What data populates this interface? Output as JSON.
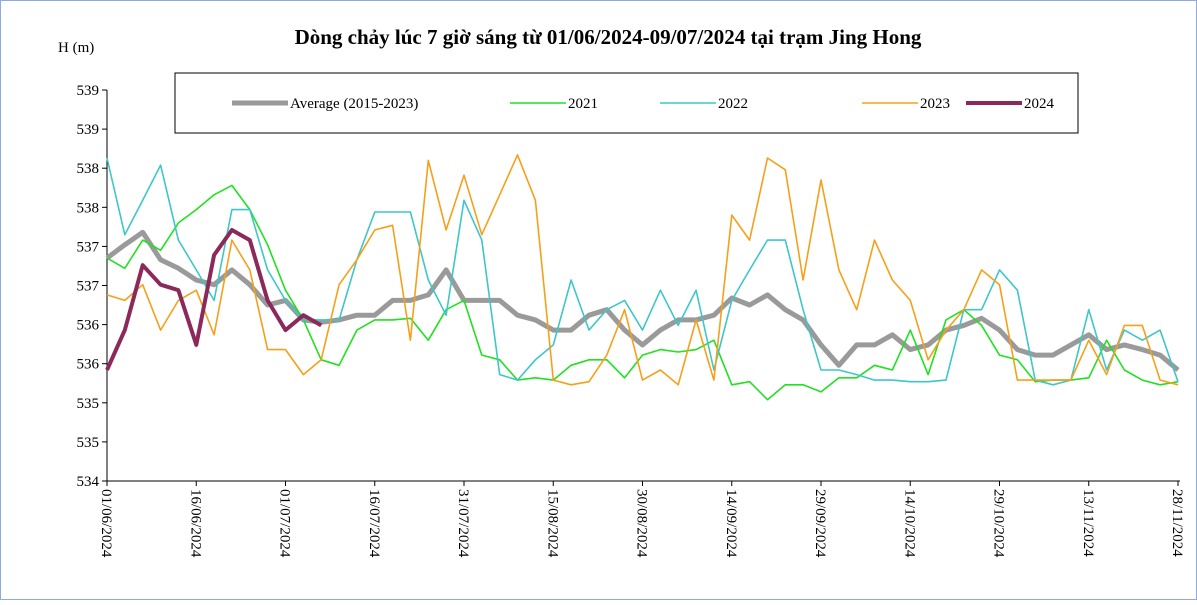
{
  "chart_data": {
    "type": "line",
    "title": "Dòng chảy lúc 7 giờ sáng từ 01/06/2024-09/07/2024 tại trạm Jing Hong",
    "y_label": "H (m)",
    "x": [
      "01/06/2024",
      "04/06/2024",
      "07/06/2024",
      "10/06/2024",
      "13/06/2024",
      "16/06/2024",
      "19/06/2024",
      "22/06/2024",
      "25/06/2024",
      "28/06/2024",
      "01/07/2024",
      "04/07/2024",
      "07/07/2024",
      "10/07/2024",
      "13/07/2024",
      "16/07/2024",
      "19/07/2024",
      "22/07/2024",
      "25/07/2024",
      "28/07/2024",
      "31/07/2024",
      "03/08/2024",
      "06/08/2024",
      "09/08/2024",
      "12/08/2024",
      "15/08/2024",
      "18/08/2024",
      "21/08/2024",
      "24/08/2024",
      "27/08/2024",
      "30/08/2024",
      "02/09/2024",
      "05/09/2024",
      "08/09/2024",
      "11/09/2024",
      "14/09/2024",
      "17/09/2024",
      "20/09/2024",
      "23/09/2024",
      "26/09/2024",
      "29/09/2024",
      "02/10/2024",
      "05/10/2024",
      "08/10/2024",
      "11/10/2024",
      "14/10/2024",
      "17/10/2024",
      "20/10/2024",
      "23/10/2024",
      "26/10/2024",
      "29/10/2024",
      "01/11/2024",
      "04/11/2024",
      "07/11/2024",
      "10/11/2024",
      "13/11/2024",
      "16/11/2024",
      "19/11/2024",
      "22/11/2024",
      "25/11/2024",
      "28/11/2024"
    ],
    "xlim": [
      "01/06/2024",
      "28/11/2024"
    ],
    "xticks": [
      "01/06/2024",
      "16/06/2024",
      "01/07/2024",
      "16/07/2024",
      "31/07/2024",
      "15/08/2024",
      "30/08/2024",
      "14/09/2024",
      "29/09/2024",
      "14/10/2024",
      "29/10/2024",
      "13/11/2024",
      "28/11/2024"
    ],
    "ylim": [
      534,
      539
    ],
    "yticks": [
      534,
      {
        "value": 534.5,
        "label": "535"
      },
      535,
      {
        "value": 535.5,
        "label": "536"
      },
      536,
      {
        "value": 536.5,
        "label": "537"
      },
      537,
      {
        "value": 537.5,
        "label": "538"
      },
      538,
      {
        "value": 538.5,
        "label": "539"
      },
      539
    ],
    "series": [
      {
        "name": "Average (2015-2023)",
        "color": "#9a9a9a",
        "values": [
          536.85,
          537.02,
          537.18,
          536.83,
          536.72,
          536.57,
          536.51,
          536.7,
          536.51,
          536.25,
          536.31,
          536.06,
          536.03,
          536.06,
          536.12,
          536.12,
          536.31,
          536.31,
          536.38,
          536.7,
          536.31,
          536.31,
          536.31,
          536.12,
          536.06,
          535.93,
          535.93,
          536.12,
          536.19,
          535.93,
          535.74,
          535.93,
          536.06,
          536.06,
          536.12,
          536.34,
          536.25,
          536.38,
          536.19,
          536.06,
          535.74,
          535.48,
          535.74,
          535.74,
          535.87,
          535.68,
          535.74,
          535.93,
          535.99,
          536.08,
          535.93,
          535.68,
          535.61,
          535.61,
          535.74,
          535.87,
          535.68,
          535.74,
          535.68,
          535.61,
          535.42
        ]
      },
      {
        "name": "2021",
        "color": "#22e022",
        "values": [
          536.85,
          536.72,
          537.08,
          536.95,
          537.3,
          537.47,
          537.66,
          537.78,
          537.47,
          537.02,
          536.44,
          536.06,
          535.55,
          535.48,
          535.93,
          536.06,
          536.06,
          536.08,
          535.8,
          536.19,
          536.31,
          535.61,
          535.55,
          535.29,
          535.32,
          535.29,
          535.48,
          535.55,
          535.55,
          535.32,
          535.61,
          535.68,
          535.65,
          535.68,
          535.8,
          535.23,
          535.27,
          535.04,
          535.23,
          535.23,
          535.14,
          535.32,
          535.32,
          535.48,
          535.42,
          535.93,
          535.36,
          536.06,
          536.19,
          535.99,
          535.61,
          535.55,
          535.27,
          535.29,
          535.29,
          535.32,
          535.8,
          535.42,
          535.29,
          535.23,
          535.27
        ]
      },
      {
        "name": "2022",
        "color": "#3fc6c8",
        "values": [
          538.13,
          537.15,
          537.59,
          538.04,
          537.08,
          536.7,
          536.31,
          537.47,
          537.47,
          536.7,
          536.31,
          536.06,
          536.06,
          536.06,
          536.83,
          537.44,
          537.44,
          537.44,
          536.57,
          536.12,
          537.59,
          537.08,
          535.36,
          535.29,
          535.55,
          535.74,
          536.57,
          535.93,
          536.19,
          536.31,
          535.93,
          536.44,
          535.99,
          536.44,
          535.42,
          536.31,
          536.7,
          537.08,
          537.08,
          536.19,
          535.42,
          535.42,
          535.36,
          535.29,
          535.29,
          535.27,
          535.27,
          535.29,
          536.19,
          536.19,
          536.7,
          536.44,
          535.29,
          535.23,
          535.29,
          536.19,
          535.42,
          535.93,
          535.8,
          535.93,
          535.27
        ]
      },
      {
        "name": "2023",
        "color": "#f5a01a",
        "values": [
          536.38,
          536.31,
          536.51,
          535.93,
          536.31,
          536.44,
          535.87,
          537.08,
          536.7,
          535.68,
          535.68,
          535.36,
          535.55,
          536.51,
          536.83,
          537.21,
          537.27,
          535.8,
          538.1,
          537.21,
          537.91,
          537.15,
          537.66,
          538.17,
          537.59,
          535.29,
          535.23,
          535.27,
          535.61,
          536.19,
          535.29,
          535.42,
          535.23,
          536.06,
          535.29,
          537.4,
          537.08,
          538.13,
          537.98,
          536.57,
          537.85,
          536.7,
          536.19,
          537.08,
          536.57,
          536.31,
          535.55,
          535.93,
          536.19,
          536.7,
          536.51,
          535.29,
          535.29,
          535.29,
          535.29,
          535.8,
          535.36,
          535.99,
          535.99,
          535.29,
          535.23
        ]
      },
      {
        "name": "2024",
        "color": "#8b2a5a",
        "values": [
          535.42,
          535.93,
          536.76,
          536.51,
          536.44,
          535.74,
          536.89,
          537.21,
          537.08,
          536.31,
          535.93,
          536.12,
          535.99,
          null,
          null,
          null,
          null,
          null,
          null,
          null,
          null,
          null,
          null,
          null,
          null,
          null,
          null,
          null,
          null,
          null,
          null,
          null,
          null,
          null,
          null,
          null,
          null,
          null,
          null,
          null,
          null,
          null,
          null,
          null,
          null,
          null,
          null,
          null,
          null,
          null,
          null,
          null,
          null,
          null,
          null,
          null,
          null,
          null,
          null,
          null,
          null
        ]
      }
    ]
  }
}
